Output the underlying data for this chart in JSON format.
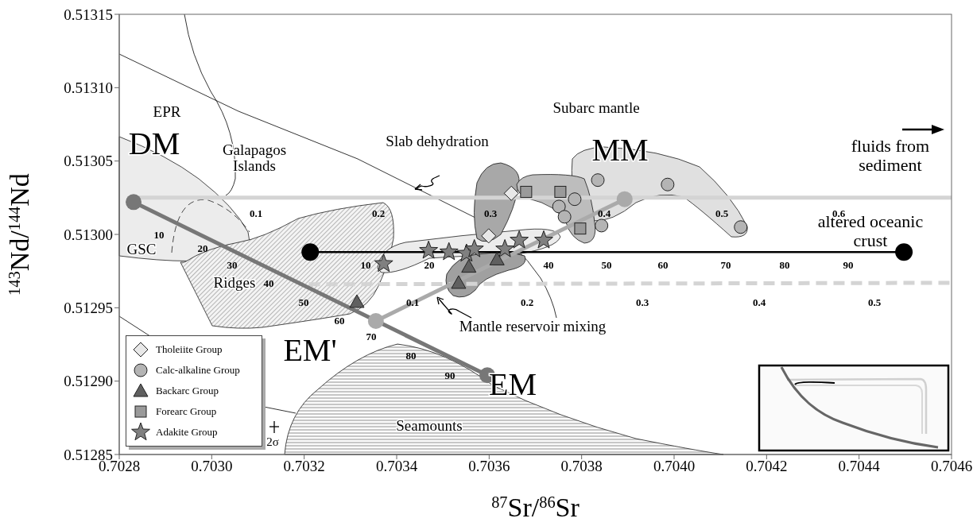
{
  "chart_data": {
    "type": "scatter",
    "xlabel": "$^{87}$Sr/$^{86}$Sr",
    "ylabel": "$^{143}$Nd/$^{144}$Nd",
    "xlim": [
      0.7028,
      0.7046
    ],
    "ylim": [
      0.51285,
      0.51315
    ],
    "xticks": [
      0.7028,
      {
        "value": 0.703,
        "label": "0.7030"
      },
      0.7032,
      0.7034,
      0.7036,
      0.7038,
      {
        "value": 0.704,
        "label": "0.7040"
      },
      0.7042,
      0.7044,
      0.7046
    ],
    "yticks": [
      0.51285,
      {
        "value": 0.5129,
        "label": "0.51290"
      },
      0.51295,
      {
        "value": 0.513,
        "label": "0.51300"
      },
      0.51305,
      {
        "value": 0.5131,
        "label": "0.51310"
      },
      0.51315
    ],
    "legend": "bottom left",
    "series": [
      {
        "type": "line",
        "color": "#d4d4d4",
        "marker": "none",
        "line_style": "solid",
        "x": [
          0.70283,
          0.7046
        ],
        "values": [
          0.513025,
          0.513025
        ]
      },
      {
        "type": "line",
        "color": "#d4d4d4",
        "marker": "none",
        "line_style": "dashed",
        "x": [
          0.70321,
          0.7046
        ],
        "values": [
          0.512966,
          0.512967
        ]
      },
      {
        "type": "line",
        "color": "#000000",
        "marker": "circle",
        "line_style": "solid",
        "x": [
          0.703213,
          0.704497
        ],
        "values": [
          0.512988,
          0.512988
        ]
      },
      {
        "type": "line",
        "color": "#777777",
        "marker": "circle",
        "line_style": "solid",
        "x": [
          0.702831,
          0.703596
        ],
        "values": [
          0.513022,
          0.512904
        ]
      },
      {
        "type": "line",
        "color": "#aaaaaa",
        "marker": "circle",
        "line_style": "solid",
        "x": [
          0.703355,
          0.703893
        ],
        "values": [
          0.512941,
          0.513024
        ]
      },
      {
        "name": "Tholeiite Group",
        "color": "#e8e8e8",
        "marker": "diamond",
        "x": [
          0.703648,
          0.703599
        ],
        "values": [
          0.513028,
          0.512999
        ]
      },
      {
        "name": "Calc-alkaline Group",
        "color": "#b4b4b4",
        "marker": "circle",
        "x": [
          0.703785,
          0.703751,
          0.703763,
          0.703843,
          0.703835,
          0.703986,
          0.704144
        ],
        "values": [
          0.513024,
          0.513019,
          0.513012,
          0.513006,
          0.513037,
          0.513034,
          0.513005
        ]
      },
      {
        "name": "Backarc Group",
        "color": "#606060",
        "marker": "triangle",
        "x": [
          0.703556,
          0.703617,
          0.703534,
          0.703314
        ],
        "values": [
          0.512978,
          0.512983,
          0.512967,
          0.512954
        ]
      },
      {
        "name": "Forearc Group",
        "color": "#9a9a9a",
        "marker": "square",
        "x": [
          0.70368,
          0.703754,
          0.703797
        ],
        "values": [
          0.513029,
          0.513029,
          0.513004
        ]
      },
      {
        "name": "Adakite Group",
        "color": "#808080",
        "marker": "star",
        "x": [
          0.703372,
          0.703469,
          0.703513,
          0.703551,
          0.703568,
          0.703634,
          0.703665,
          0.703718
        ],
        "values": [
          0.51298,
          0.512989,
          0.512988,
          0.512987,
          0.51299,
          0.51299,
          0.512996,
          0.512996
        ]
      }
    ],
    "annotations": [
      "EPR",
      "Galapagos\nIslands",
      "Slab dehydration",
      "Subarc mantle",
      "MM",
      "DM",
      "fluids from\nsediment",
      "altered oceanic\ncrust",
      "GSC",
      "Ridges",
      "EM'",
      "EM",
      "Mantle reservoir mixing",
      "Seamounts",
      "2σ",
      "0.1",
      "0.2",
      "0.3",
      "0.4",
      "0.5",
      "0.6",
      "0.1",
      "0.2",
      "0.3",
      "0.4",
      "0.5",
      "10",
      "20",
      "30",
      "40",
      "50",
      "60",
      "70",
      "80",
      "90",
      "10",
      "20",
      "40",
      "50",
      "60",
      "70",
      "80",
      "90"
    ]
  }
}
